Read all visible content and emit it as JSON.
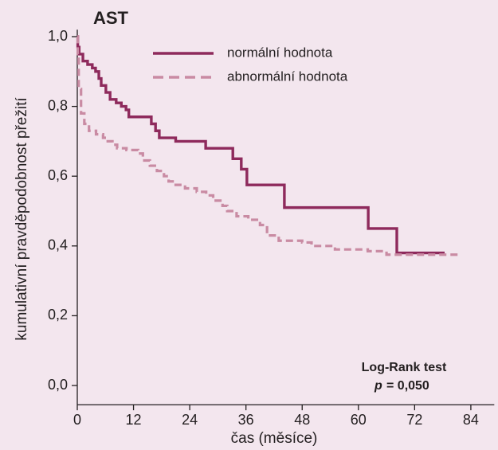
{
  "chart_data": {
    "type": "step",
    "title": "AST",
    "x_label": "čas (měsíce)",
    "y_label": "kumulativní pravděpodobnost přežití",
    "annotation": "Log-Rank test",
    "p_symbol": "p",
    "p_text": "= 0,050",
    "xlim": [
      0,
      89
    ],
    "ylim": [
      -0.055,
      1.02
    ],
    "xticks": [
      0,
      12,
      24,
      36,
      48,
      60,
      72,
      84
    ],
    "yticks": [
      {
        "value": 0.0,
        "label": "0,0"
      },
      {
        "value": 0.2,
        "label": "0,2"
      },
      {
        "value": 0.4,
        "label": "0,4"
      },
      {
        "value": 0.6,
        "label": "0,6"
      },
      {
        "value": 0.8,
        "label": "0,8"
      },
      {
        "value": 1.0,
        "label": "1,0"
      }
    ],
    "series": [
      {
        "name": "normální hodnota",
        "color": "#8e2a5c",
        "dash": false,
        "x": [
          0,
          0.1,
          0.4,
          1.2,
          2.2,
          3.2,
          3.9,
          4.6,
          5.1,
          6.1,
          7.0,
          8.3,
          9.4,
          10.4,
          11.0,
          15.8,
          16.7,
          17.5,
          21.0,
          27.4,
          33.2,
          35.0,
          36.2,
          44.2,
          62.1,
          68.2,
          78.4
        ],
        "values": [
          1.0,
          0.97,
          0.95,
          0.93,
          0.92,
          0.91,
          0.9,
          0.88,
          0.86,
          0.84,
          0.82,
          0.81,
          0.8,
          0.79,
          0.77,
          0.75,
          0.73,
          0.71,
          0.7,
          0.68,
          0.65,
          0.62,
          0.575,
          0.51,
          0.45,
          0.38,
          0.38
        ]
      },
      {
        "name": "abnormální hodnota",
        "color": "#c98ba3",
        "dash": true,
        "x": [
          0,
          0.1,
          0.3,
          0.8,
          1.5,
          2.5,
          4.0,
          5.5,
          6.5,
          7.5,
          8.5,
          10.5,
          13.0,
          14.0,
          15.5,
          17.0,
          18.5,
          19.5,
          21.0,
          23.0,
          25.5,
          27.5,
          29.0,
          31.0,
          32.0,
          34.0,
          36.5,
          39.0,
          40.5,
          43.0,
          48.0,
          50.0,
          55.0,
          62.0,
          66.0,
          82.0
        ],
        "values": [
          1.0,
          0.95,
          0.85,
          0.78,
          0.75,
          0.73,
          0.72,
          0.71,
          0.7,
          0.69,
          0.68,
          0.675,
          0.665,
          0.645,
          0.63,
          0.615,
          0.6,
          0.585,
          0.575,
          0.565,
          0.555,
          0.545,
          0.53,
          0.515,
          0.5,
          0.485,
          0.475,
          0.46,
          0.43,
          0.415,
          0.41,
          0.4,
          0.39,
          0.385,
          0.375,
          0.375
        ]
      }
    ]
  }
}
